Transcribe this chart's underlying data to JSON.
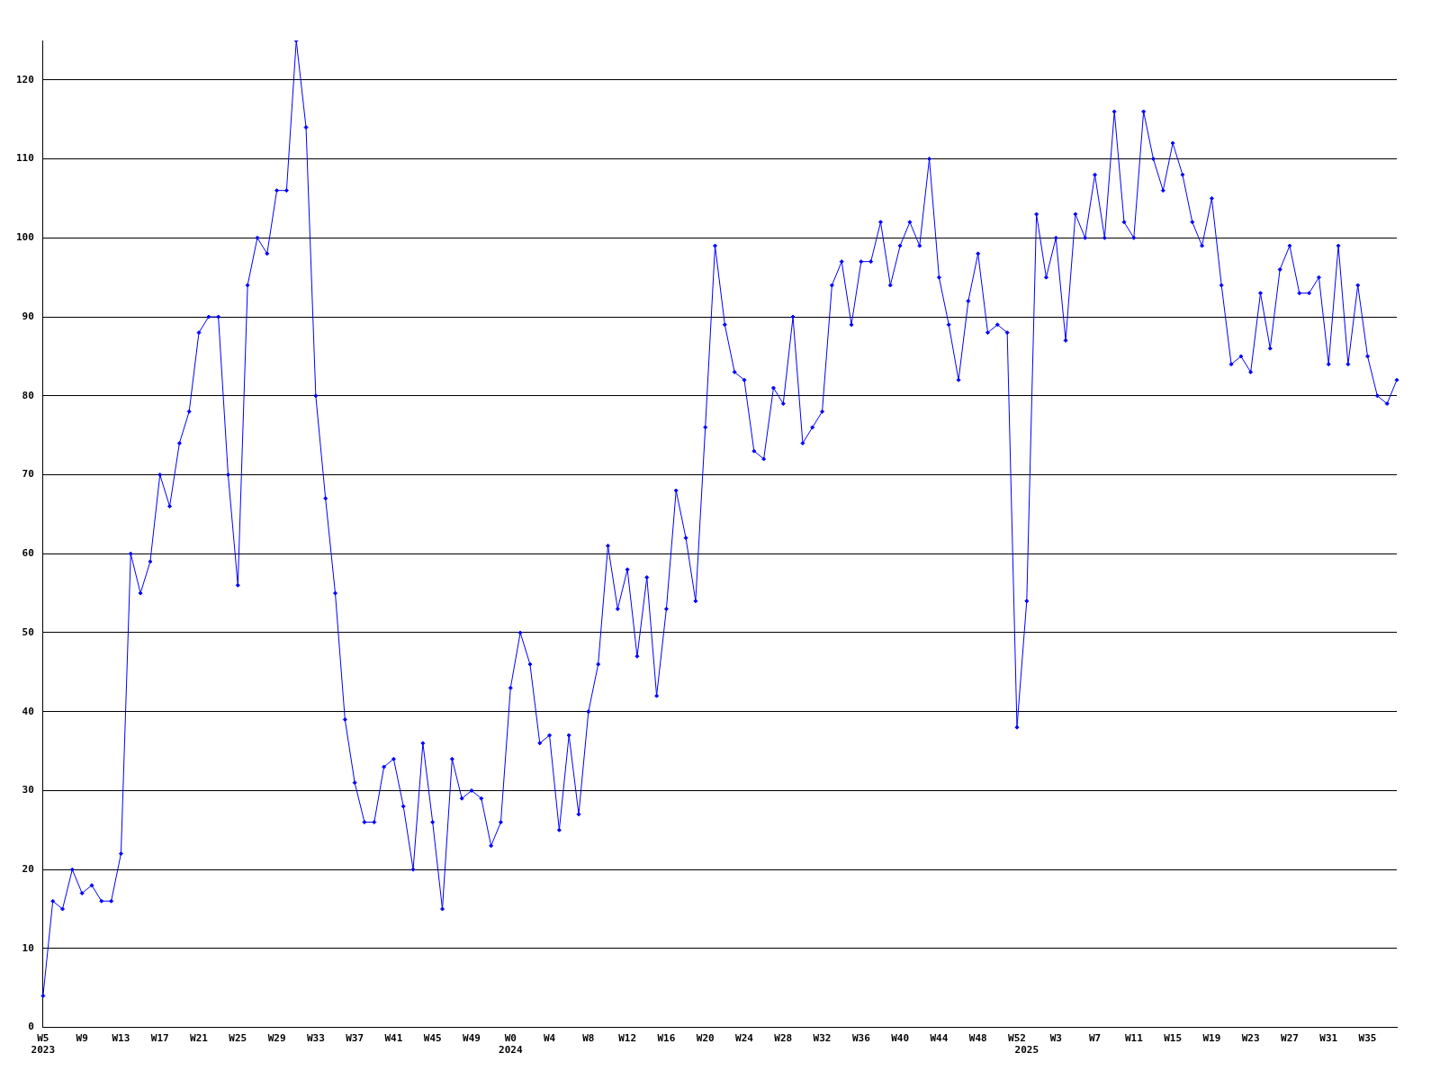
{
  "chart_data": {
    "type": "line",
    "categories": [
      "W5\n2023",
      null,
      null,
      null,
      "W9",
      null,
      null,
      null,
      "W13",
      null,
      null,
      null,
      "W17",
      null,
      null,
      null,
      "W21",
      null,
      null,
      null,
      "W25",
      null,
      null,
      null,
      "W29",
      null,
      null,
      null,
      "W33",
      null,
      null,
      null,
      "W37",
      null,
      null,
      null,
      "W41",
      null,
      null,
      null,
      "W45",
      null,
      null,
      null,
      "W49",
      null,
      null,
      null,
      "W0\n2024",
      null,
      null,
      null,
      "W4",
      null,
      null,
      null,
      "W8",
      null,
      null,
      null,
      "W12",
      null,
      null,
      null,
      "W16",
      null,
      null,
      null,
      "W20",
      null,
      null,
      null,
      "W24",
      null,
      null,
      null,
      "W28",
      null,
      null,
      null,
      "W32",
      null,
      null,
      null,
      "W36",
      null,
      null,
      null,
      "W40",
      null,
      null,
      null,
      "W44",
      null,
      null,
      null,
      "W48",
      null,
      null,
      null,
      "W52",
      "\n2025",
      null,
      null,
      "W3",
      null,
      null,
      null,
      "W7",
      null,
      null,
      null,
      "W11",
      null,
      null,
      null,
      "W15",
      null,
      null,
      null,
      "W19",
      null,
      null,
      null,
      "W23",
      null,
      null,
      null,
      "W27",
      null,
      null,
      null,
      "W31",
      null,
      null,
      null,
      "W35",
      null,
      null,
      null
    ],
    "values": [
      4,
      16,
      15,
      20,
      17,
      18,
      16,
      16,
      22,
      60,
      55,
      59,
      70,
      66,
      74,
      78,
      88,
      90,
      90,
      70,
      56,
      94,
      100,
      98,
      106,
      106,
      125,
      114,
      80,
      67,
      55,
      39,
      31,
      26,
      26,
      33,
      34,
      28,
      20,
      36,
      26,
      15,
      34,
      29,
      30,
      29,
      23,
      26,
      43,
      50,
      46,
      36,
      37,
      25,
      37,
      27,
      40,
      46,
      61,
      53,
      58,
      47,
      57,
      42,
      53,
      68,
      62,
      54,
      76,
      99,
      89,
      83,
      82,
      73,
      72,
      81,
      79,
      90,
      74,
      76,
      78,
      94,
      97,
      89,
      97,
      97,
      102,
      94,
      99,
      102,
      99,
      110,
      95,
      89,
      82,
      92,
      98,
      88,
      89,
      88,
      38,
      54,
      103,
      95,
      100,
      87,
      103,
      100,
      108,
      100,
      116,
      102,
      100,
      116,
      110,
      106,
      112,
      108,
      102,
      99,
      105,
      94,
      84,
      85,
      83,
      93,
      86,
      96,
      99,
      93,
      93,
      95,
      84,
      99,
      84,
      94,
      85,
      80,
      79,
      82
    ],
    "color": "#0000ff",
    "ylim": [
      0,
      125
    ],
    "yticks": [
      0,
      10,
      20,
      30,
      40,
      50,
      60,
      70,
      80,
      90,
      100,
      110,
      120
    ],
    "grid": "y",
    "marker": "diamond"
  }
}
